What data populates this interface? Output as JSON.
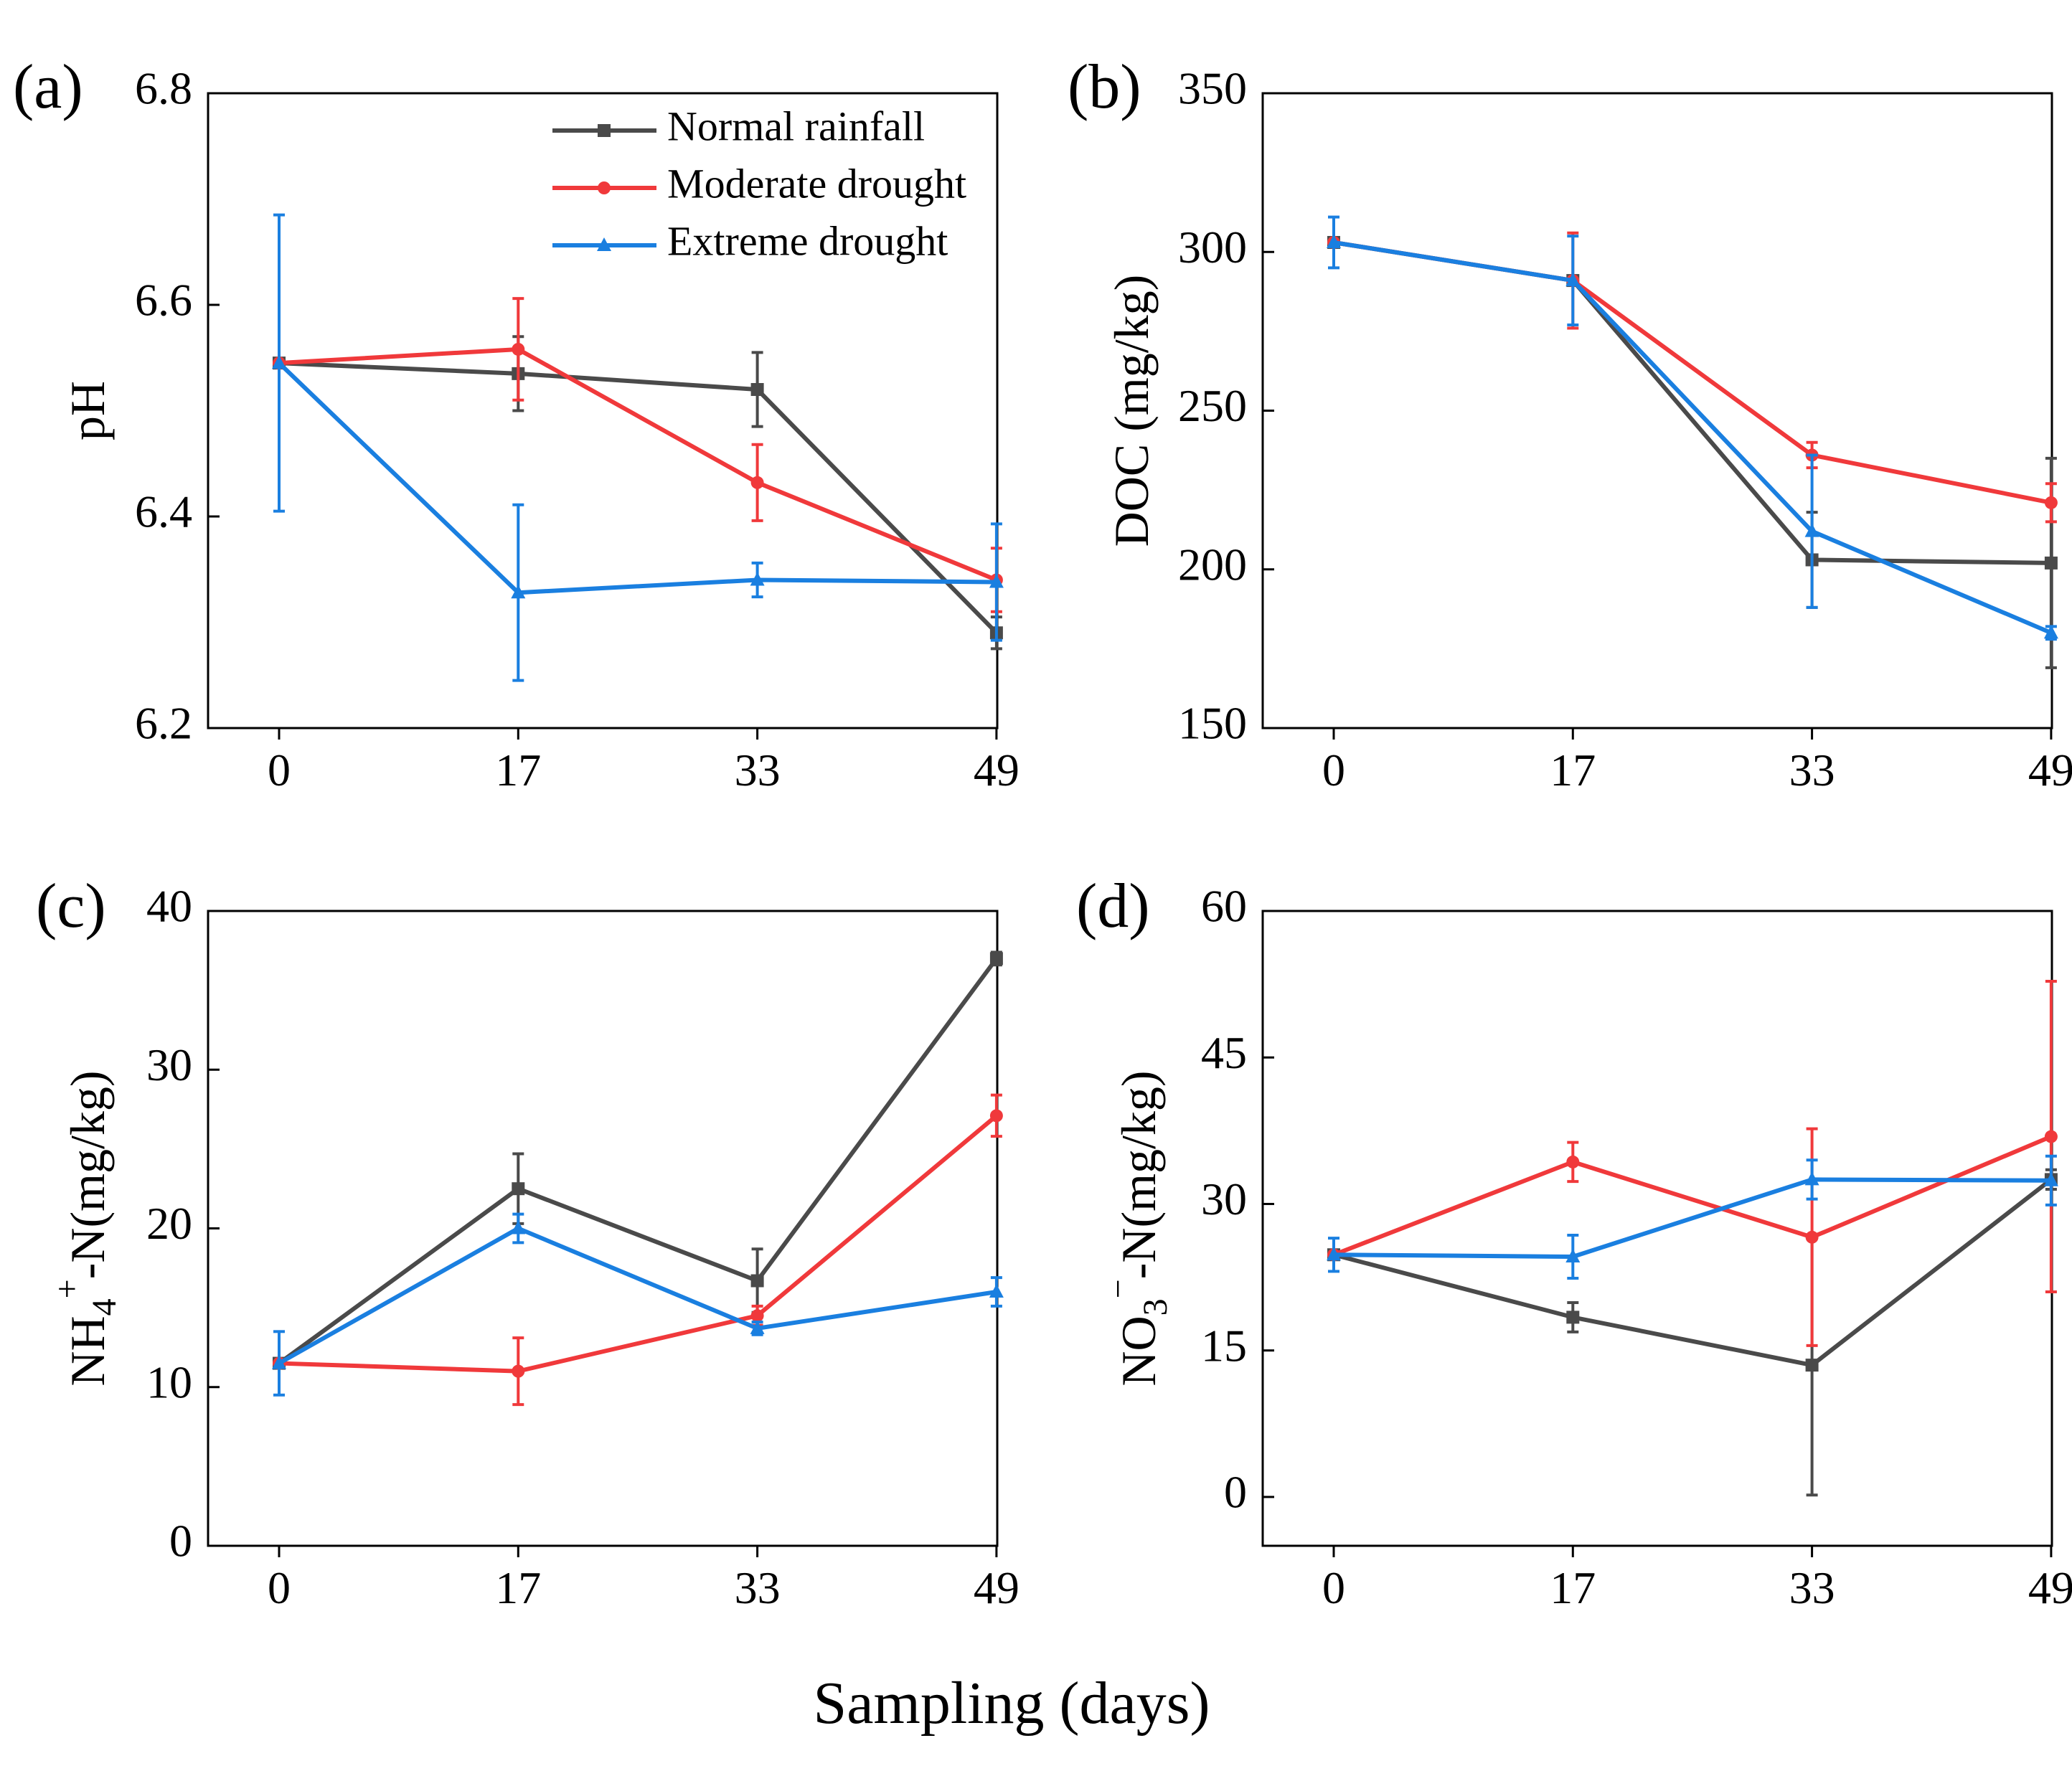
{
  "figure": {
    "xlabel": "Sampling (days)"
  },
  "legend": {
    "entries": [
      {
        "name": "Normal rainfall",
        "color": "#4a4a4a",
        "marker": "square"
      },
      {
        "name": "Moderate drought",
        "color": "#f0393b",
        "marker": "circle"
      },
      {
        "name": "Extreme drought",
        "color": "#1a7fe0",
        "marker": "triangle"
      }
    ]
  },
  "chart_data": [
    {
      "type": "line",
      "panel": "(a)",
      "ylabel": "pH",
      "categories": [
        "0",
        "17",
        "33",
        "49"
      ],
      "ylim": [
        6.2,
        6.8
      ],
      "yticks": [
        6.2,
        6.4,
        6.6,
        6.8
      ],
      "ytick_labels": [
        "6.2",
        "6.4",
        "6.6",
        "6.8"
      ],
      "legend_position": "top-right",
      "series": [
        {
          "name": "Normal rainfall",
          "values": [
            6.545,
            6.535,
            6.52,
            6.29
          ],
          "errors": [
            0.0,
            0.035,
            0.035,
            0.015
          ]
        },
        {
          "name": "Moderate drought",
          "values": [
            6.545,
            6.558,
            6.432,
            6.34
          ],
          "errors": [
            0.0,
            0.048,
            0.036,
            0.03
          ]
        },
        {
          "name": "Extreme drought",
          "values": [
            6.545,
            6.328,
            6.34,
            6.338
          ],
          "errors": [
            0.14,
            0.083,
            0.016,
            0.055
          ]
        }
      ]
    },
    {
      "type": "line",
      "panel": "(b)",
      "ylabel": "DOC (mg/kg)",
      "categories": [
        "0",
        "17",
        "33",
        "49"
      ],
      "ylim": [
        150,
        350
      ],
      "yticks": [
        150,
        200,
        250,
        300,
        350
      ],
      "ytick_labels": [
        "150",
        "200",
        "250",
        "300",
        "350"
      ],
      "series": [
        {
          "name": "Normal rainfall",
          "values": [
            303,
            291,
            203,
            202
          ],
          "errors": [
            0,
            0,
            15,
            33
          ]
        },
        {
          "name": "Moderate drought",
          "values": [
            303,
            291,
            236,
            221
          ],
          "errors": [
            0,
            15,
            4,
            6
          ]
        },
        {
          "name": "Extreme drought",
          "values": [
            303,
            291,
            212,
            180
          ],
          "errors": [
            8,
            14,
            24,
            2
          ]
        }
      ]
    },
    {
      "type": "line",
      "panel": "(c)",
      "ylabel_main": "NH",
      "ylabel_sub": "4",
      "ylabel_sup": "+",
      "ylabel_rest": "-N(mg/kg)",
      "categories": [
        "0",
        "17",
        "33",
        "49"
      ],
      "ylim": [
        0,
        40
      ],
      "yticks": [
        0,
        10,
        20,
        30,
        40
      ],
      "ytick_labels": [
        "0",
        "10",
        "20",
        "30",
        "40"
      ],
      "series": [
        {
          "name": "Normal rainfall",
          "values": [
            11.5,
            22.5,
            16.7,
            37.0
          ],
          "errors": [
            0,
            2.2,
            2.0,
            0.4
          ]
        },
        {
          "name": "Moderate drought",
          "values": [
            11.5,
            11.0,
            14.5,
            27.1
          ],
          "errors": [
            0,
            2.1,
            0.6,
            1.3
          ]
        },
        {
          "name": "Extreme drought",
          "values": [
            11.5,
            20.0,
            13.7,
            16.0
          ],
          "errors": [
            2.0,
            0.9,
            0.4,
            0.9
          ]
        }
      ]
    },
    {
      "type": "line",
      "panel": "(d)",
      "ylabel_main": "NO",
      "ylabel_sub": "3",
      "ylabel_sup": "−",
      "ylabel_rest": "-N(mg/kg)",
      "categories": [
        "0",
        "17",
        "33",
        "49"
      ],
      "ylim": [
        -5,
        60
      ],
      "yticks": [
        0,
        15,
        30,
        45,
        60
      ],
      "ytick_labels": [
        "0",
        "15",
        "30",
        "45",
        "60"
      ],
      "series": [
        {
          "name": "Normal rainfall",
          "values": [
            24.8,
            18.4,
            13.5,
            32.5
          ],
          "errors": [
            0,
            1.5,
            13.3,
            1.0
          ]
        },
        {
          "name": "Moderate drought",
          "values": [
            24.8,
            34.3,
            26.6,
            36.9
          ],
          "errors": [
            0,
            2.0,
            11.1,
            15.9
          ]
        },
        {
          "name": "Extreme drought",
          "values": [
            24.8,
            24.6,
            32.5,
            32.4
          ],
          "errors": [
            1.7,
            2.2,
            2.0,
            2.5
          ]
        }
      ]
    }
  ]
}
